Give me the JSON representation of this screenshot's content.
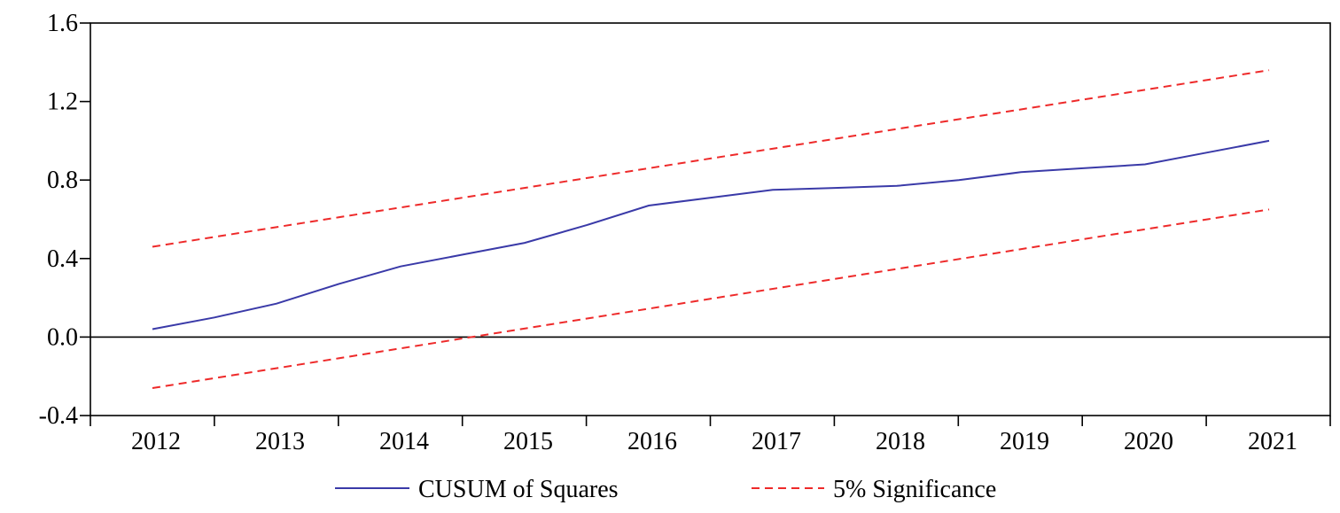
{
  "chart_data": {
    "type": "line",
    "title": "",
    "xlabel": "",
    "ylabel": "",
    "x_ticks": [
      "2012",
      "2013",
      "2014",
      "2015",
      "2016",
      "2017",
      "2018",
      "2019",
      "2020",
      "2021"
    ],
    "y_ticks": [
      "1.6",
      "1.2",
      "0.8",
      "0.4",
      "0.0",
      "-0.4"
    ],
    "ylim": [
      -0.4,
      1.6
    ],
    "grid": false,
    "zero_line": true,
    "legend": {
      "position": "bottom"
    },
    "series": [
      {
        "name": "CUSUM of Squares",
        "color": "#3a3aa8",
        "style": "solid",
        "x": [
          2012.0,
          2012.5,
          2013.0,
          2013.5,
          2014.0,
          2014.5,
          2015.0,
          2015.5,
          2016.0,
          2016.5,
          2017.0,
          2017.5,
          2018.0,
          2018.5,
          2019.0,
          2019.5,
          2020.0,
          2020.5,
          2021.0
        ],
        "y": [
          0.04,
          0.1,
          0.17,
          0.27,
          0.36,
          0.42,
          0.48,
          0.57,
          0.67,
          0.71,
          0.75,
          0.76,
          0.77,
          0.8,
          0.84,
          0.86,
          0.88,
          0.94,
          1.0
        ]
      },
      {
        "name": "5% Significance",
        "color": "#ee2a2a",
        "style": "dashed",
        "x": [
          2012,
          2021
        ],
        "y": [
          0.46,
          1.36
        ]
      },
      {
        "name": "5% Significance",
        "color": "#ee2a2a",
        "style": "dashed",
        "x": [
          2012,
          2021
        ],
        "y": [
          -0.26,
          0.65
        ]
      }
    ]
  },
  "legend": {
    "items": [
      {
        "label": "CUSUM of Squares",
        "color": "#3a3aa8",
        "style": "solid"
      },
      {
        "label": "5% Significance",
        "color": "#ee2a2a",
        "style": "dashed"
      }
    ]
  }
}
